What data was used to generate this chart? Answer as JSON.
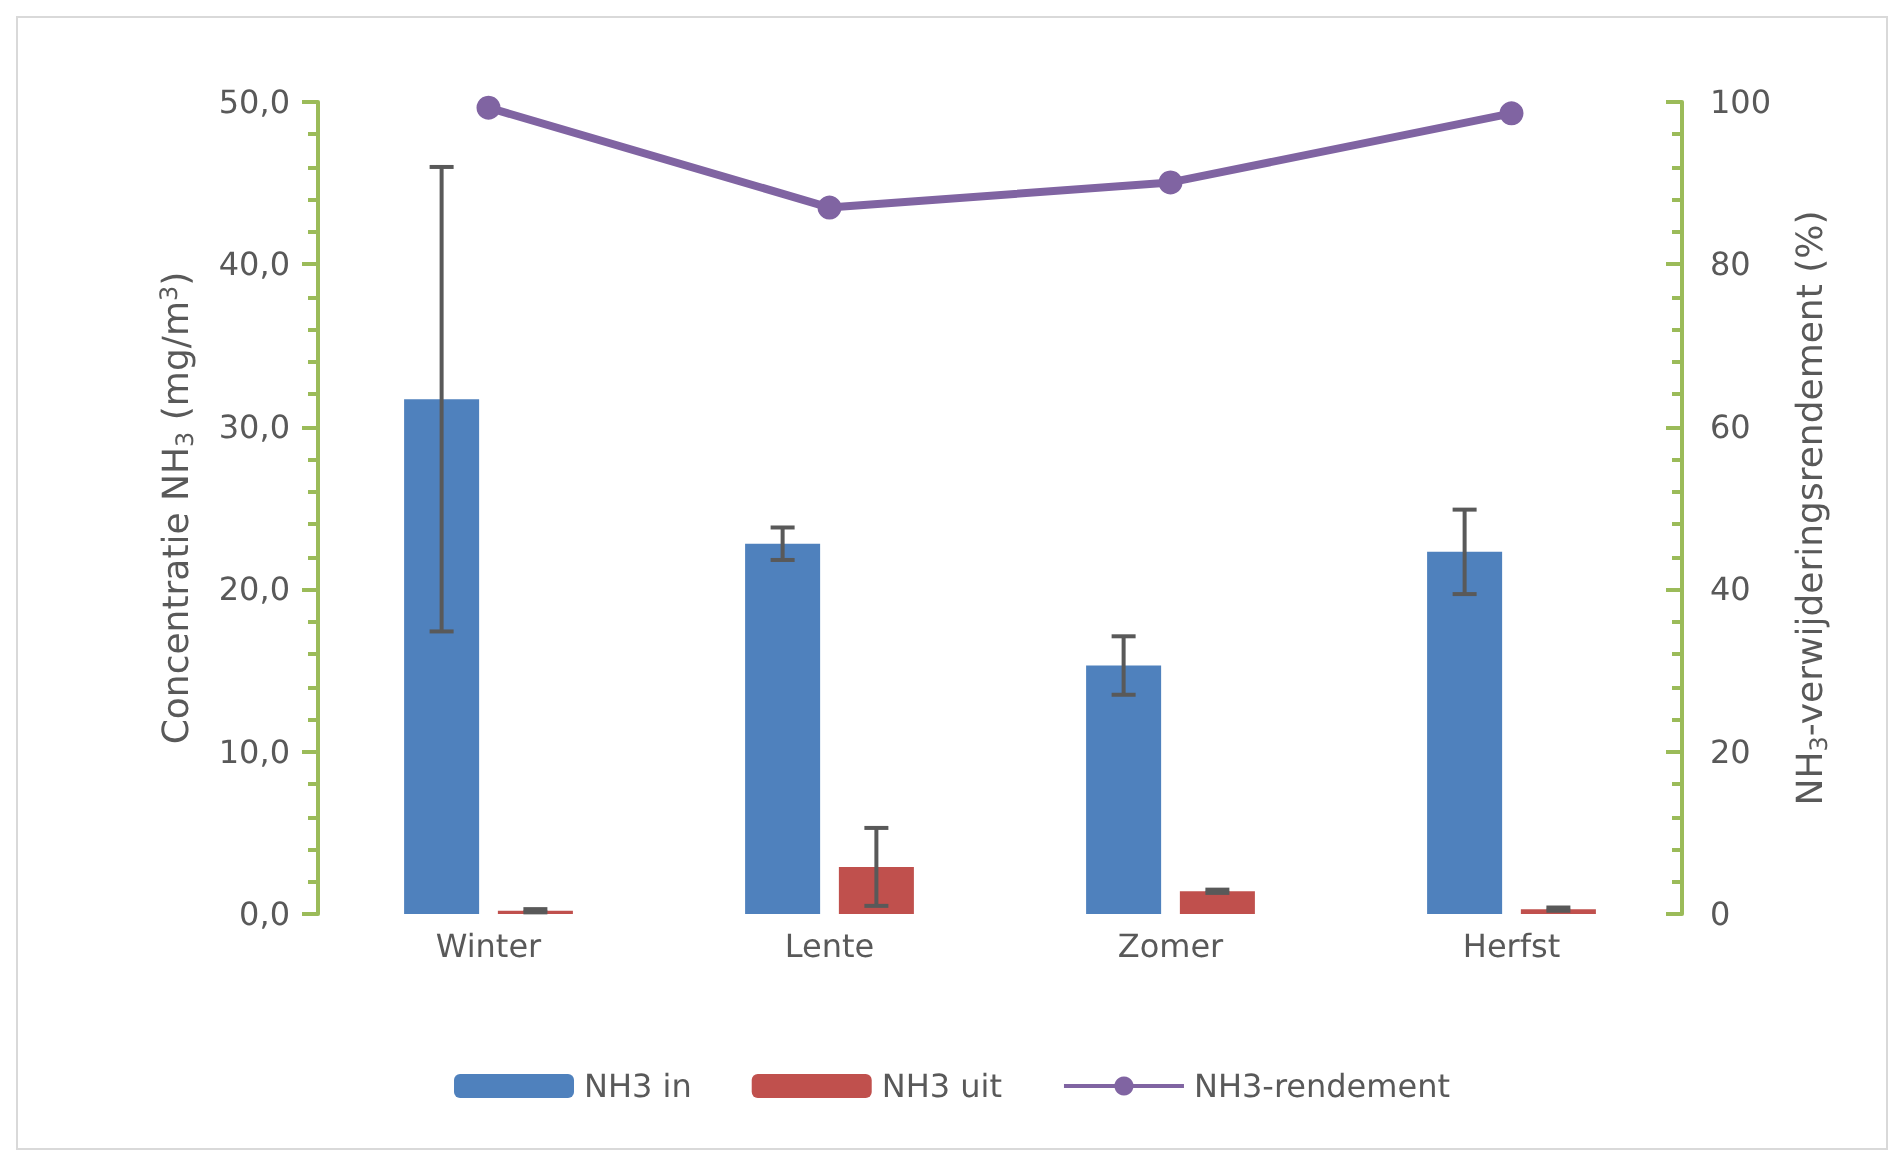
{
  "chart_data": {
    "type": "bar",
    "categories": [
      "Winter",
      "Lente",
      "Zomer",
      "Herfst"
    ],
    "series": [
      {
        "name": "NH3 in",
        "color": "#4f81bd",
        "values": [
          31.7,
          22.8,
          15.3,
          22.3
        ],
        "errors": [
          14.3,
          1.0,
          1.8,
          2.6
        ]
      },
      {
        "name": "NH3 uit",
        "color": "#c0504d",
        "values": [
          0.2,
          2.9,
          1.4,
          0.3
        ],
        "errors": [
          0.1,
          2.4,
          0.1,
          0.1
        ]
      },
      {
        "name": "NH3-rendement",
        "type": "line",
        "axis": "y2",
        "color": "#8064a2",
        "values": [
          99.3,
          87.0,
          90.1,
          98.6
        ]
      }
    ],
    "ylabel": "Concentratie NH$_{3}$ (mg/m$^{3}$)",
    "y2label": "NH$_{3}$-verwijderingsrendement (%)",
    "ylim": [
      0,
      50
    ],
    "yticks": [
      {
        "value": 0,
        "label": "0,0"
      },
      {
        "value": 10,
        "label": "10,0"
      },
      {
        "value": 20,
        "label": "20,0"
      },
      {
        "value": 30,
        "label": "30,0"
      },
      {
        "value": 40,
        "label": "40,0"
      },
      {
        "value": 50,
        "label": "50,0"
      }
    ],
    "y2lim": [
      0,
      100
    ],
    "y2ticks": [
      0,
      20,
      40,
      60,
      80,
      100
    ],
    "marker": "circle",
    "grid": false,
    "legend": "bottom"
  }
}
